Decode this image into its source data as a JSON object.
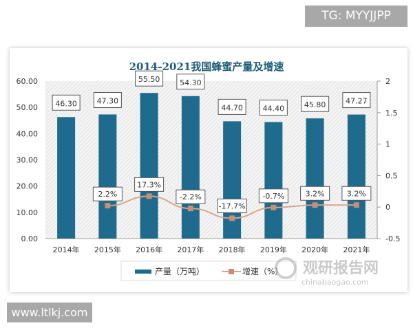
{
  "watermark_top": "TG: MYYJJPP",
  "watermark_bottom": "www.ltlkj.com",
  "logo_watermark": {
    "cn": "观研报告网",
    "en": "chinabaogao.com"
  },
  "colors": {
    "bar": "#1f6b8e",
    "line": "#d9a58c",
    "marker": "#c98f74",
    "title": "#1f5e7a"
  },
  "chart_data": {
    "type": "bar+line",
    "title": "2014-2021我国蜂蜜产量及增速",
    "categories": [
      "2014年",
      "2015年",
      "2016年",
      "2017年",
      "2018年",
      "2019年",
      "2020年",
      "2021年"
    ],
    "left_axis": {
      "ylim": [
        0,
        60
      ],
      "ticks": [
        "0.00",
        "10.00",
        "20.00",
        "30.00",
        "40.00",
        "50.00",
        "60.00"
      ]
    },
    "right_axis": {
      "ylim": [
        -0.5,
        2
      ],
      "ticks": [
        "-0.5",
        "0",
        "0.5",
        "1",
        "1.5",
        "2"
      ]
    },
    "series": [
      {
        "name": "产量（万吨）",
        "type": "bar",
        "axis": "left",
        "values": [
          46.3,
          47.3,
          55.5,
          54.3,
          44.7,
          44.4,
          45.8,
          47.27
        ],
        "labels": [
          "46.30",
          "47.30",
          "55.50",
          "54.30",
          "44.70",
          "44.40",
          "45.80",
          "47.27"
        ]
      },
      {
        "name": "增速（%）",
        "type": "line",
        "axis": "right",
        "values": [
          null,
          0.022,
          0.173,
          -0.022,
          -0.177,
          -0.007,
          0.032,
          0.032
        ],
        "labels": [
          "",
          "2.2%",
          "17.3%",
          "-2.2%",
          "-17.7%",
          "-0.7%",
          "3.2%",
          "3.2%"
        ]
      }
    ],
    "legend": "bottom",
    "grid": false
  }
}
